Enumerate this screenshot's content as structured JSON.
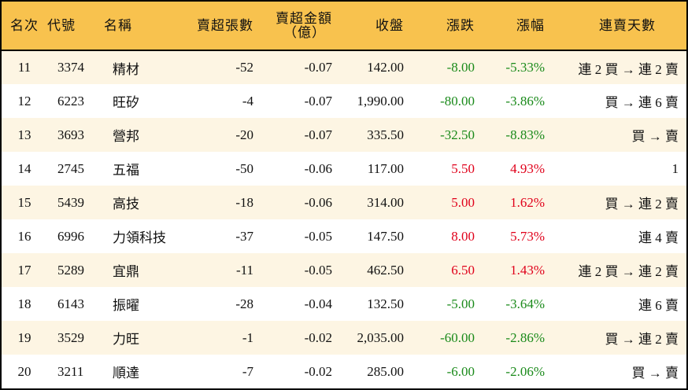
{
  "headers": [
    "名次",
    "代號",
    "名稱",
    "賣超張數",
    "賣超金額",
    "（億）",
    "收盤",
    "漲跌",
    "漲幅",
    "連賣天數"
  ],
  "colors": {
    "header_bg": "#f8c24e",
    "row_alt_bg": "#fdf5e3",
    "up": "#e0001a",
    "down": "#1a8a1a"
  },
  "rows": [
    {
      "rank": "11",
      "code": "3374",
      "name": "精材",
      "shares": "-52",
      "amount": "-0.07",
      "close": "142.00",
      "change": "-8.00",
      "pct": "-5.33%",
      "streak": "連 2 買 → 連 2 賣",
      "dir": "neg"
    },
    {
      "rank": "12",
      "code": "6223",
      "name": "旺矽",
      "shares": "-4",
      "amount": "-0.07",
      "close": "1,990.00",
      "change": "-80.00",
      "pct": "-3.86%",
      "streak": "買 → 連 6 賣",
      "dir": "neg"
    },
    {
      "rank": "13",
      "code": "3693",
      "name": "營邦",
      "shares": "-20",
      "amount": "-0.07",
      "close": "335.50",
      "change": "-32.50",
      "pct": "-8.83%",
      "streak": "買 → 賣",
      "dir": "neg"
    },
    {
      "rank": "14",
      "code": "2745",
      "name": "五福",
      "shares": "-50",
      "amount": "-0.06",
      "close": "117.00",
      "change": "5.50",
      "pct": "4.93%",
      "streak": "1",
      "dir": "pos"
    },
    {
      "rank": "15",
      "code": "5439",
      "name": "高技",
      "shares": "-18",
      "amount": "-0.06",
      "close": "314.00",
      "change": "5.00",
      "pct": "1.62%",
      "streak": "買 → 連 2 賣",
      "dir": "pos"
    },
    {
      "rank": "16",
      "code": "6996",
      "name": "力領科技",
      "shares": "-37",
      "amount": "-0.05",
      "close": "147.50",
      "change": "8.00",
      "pct": "5.73%",
      "streak": "連 4 賣",
      "dir": "pos"
    },
    {
      "rank": "17",
      "code": "5289",
      "name": "宜鼎",
      "shares": "-11",
      "amount": "-0.05",
      "close": "462.50",
      "change": "6.50",
      "pct": "1.43%",
      "streak": "連 2 買 → 連 2 賣",
      "dir": "pos"
    },
    {
      "rank": "18",
      "code": "6143",
      "name": "振曜",
      "shares": "-28",
      "amount": "-0.04",
      "close": "132.50",
      "change": "-5.00",
      "pct": "-3.64%",
      "streak": "連 6 賣",
      "dir": "neg"
    },
    {
      "rank": "19",
      "code": "3529",
      "name": "力旺",
      "shares": "-1",
      "amount": "-0.02",
      "close": "2,035.00",
      "change": "-60.00",
      "pct": "-2.86%",
      "streak": "買 → 連 2 賣",
      "dir": "neg"
    },
    {
      "rank": "20",
      "code": "3211",
      "name": "順達",
      "shares": "-7",
      "amount": "-0.02",
      "close": "285.00",
      "change": "-6.00",
      "pct": "-2.06%",
      "streak": "買 → 賣",
      "dir": "neg"
    }
  ]
}
